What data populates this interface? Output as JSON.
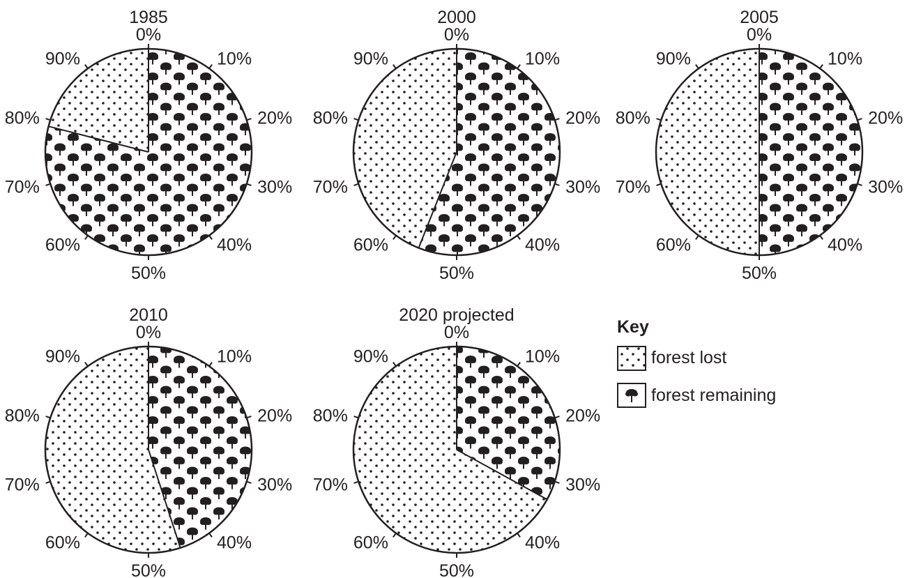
{
  "chart_data": [
    {
      "type": "pie",
      "title": "1985",
      "categories": [
        "forest remaining",
        "forest lost"
      ],
      "values": [
        79,
        21
      ],
      "tick_labels": [
        "0%",
        "10%",
        "20%",
        "30%",
        "40%",
        "50%",
        "60%",
        "70%",
        "80%",
        "90%"
      ]
    },
    {
      "type": "pie",
      "title": "2000",
      "categories": [
        "forest remaining",
        "forest lost"
      ],
      "values": [
        56,
        44
      ],
      "tick_labels": [
        "0%",
        "10%",
        "20%",
        "30%",
        "40%",
        "50%",
        "60%",
        "70%",
        "80%",
        "90%"
      ]
    },
    {
      "type": "pie",
      "title": "2005",
      "categories": [
        "forest remaining",
        "forest lost"
      ],
      "values": [
        50,
        50
      ],
      "tick_labels": [
        "0%",
        "10%",
        "20%",
        "30%",
        "40%",
        "50%",
        "60%",
        "70%",
        "80%",
        "90%"
      ]
    },
    {
      "type": "pie",
      "title": "2010",
      "categories": [
        "forest remaining",
        "forest lost"
      ],
      "values": [
        45,
        55
      ],
      "tick_labels": [
        "0%",
        "10%",
        "20%",
        "30%",
        "40%",
        "50%",
        "60%",
        "70%",
        "80%",
        "90%"
      ]
    },
    {
      "type": "pie",
      "title": "2020 projected",
      "categories": [
        "forest remaining",
        "forest lost"
      ],
      "values": [
        33,
        67
      ],
      "tick_labels": [
        "0%",
        "10%",
        "20%",
        "30%",
        "40%",
        "50%",
        "60%",
        "70%",
        "80%",
        "90%"
      ]
    }
  ],
  "key": {
    "title": "Key",
    "items": [
      {
        "label": "forest lost",
        "pattern": "dots"
      },
      {
        "label": "forest remaining",
        "pattern": "trees"
      }
    ]
  },
  "colors": {
    "ink": "#231f20",
    "background": "#ffffff"
  }
}
